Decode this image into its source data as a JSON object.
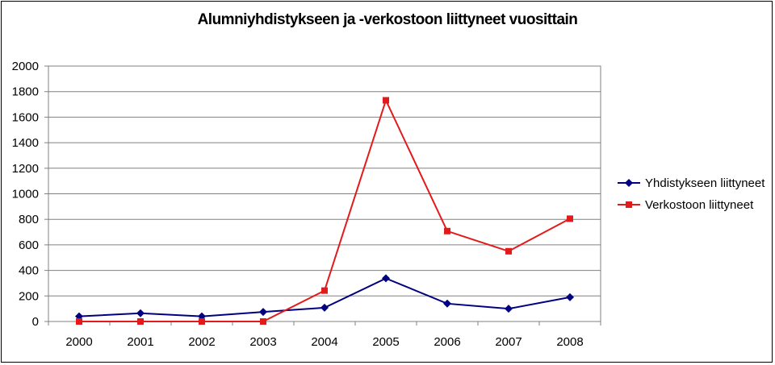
{
  "chart_data": {
    "type": "line",
    "title": "Alumniyhdistykseen ja -verkostoon liittyneet vuosittain",
    "categories": [
      "2000",
      "2001",
      "2002",
      "2003",
      "2004",
      "2005",
      "2006",
      "2007",
      "2008"
    ],
    "ylim": [
      0,
      2000
    ],
    "yticks": [
      0,
      200,
      400,
      600,
      800,
      1000,
      1200,
      1400,
      1600,
      1800,
      2000
    ],
    "ytick_labels": [
      "0",
      "200",
      "400",
      "600",
      "800",
      "1000",
      "1200",
      "1400",
      "1600",
      "1800",
      "2000"
    ],
    "grid": true,
    "legend_position": "right",
    "series": [
      {
        "name": "Yhdistykseen liittyneet",
        "color": "#000080",
        "marker": "diamond",
        "values": [
          40,
          65,
          40,
          75,
          108,
          338,
          140,
          100,
          190
        ]
      },
      {
        "name": "Verkostoon liittyneet",
        "color": "#e31a1c",
        "marker": "square",
        "values": [
          0,
          0,
          0,
          0,
          242,
          1732,
          708,
          550,
          805
        ]
      }
    ]
  }
}
